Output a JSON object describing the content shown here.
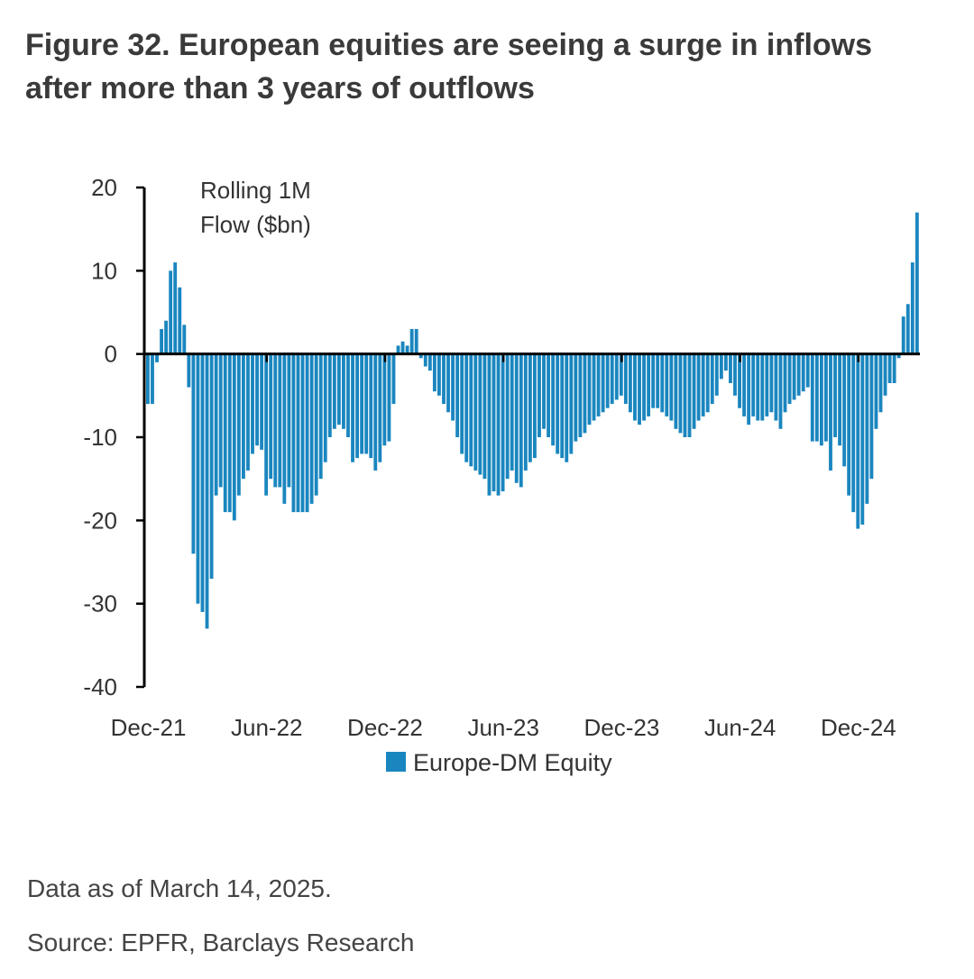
{
  "figure": {
    "title_line1": "Figure 32. European equities are seeing a surge in inflows",
    "title_line2": "after more than 3 years of outflows",
    "note": "Data as of March 14, 2025.",
    "source": "Source: EPFR, Barclays Research"
  },
  "chart_data": {
    "type": "bar",
    "ylabel_line1": "Rolling 1M",
    "ylabel_line2": "Flow ($bn)",
    "ylim": [
      -40,
      20
    ],
    "yticks": [
      20,
      10,
      0,
      -10,
      -20,
      -30,
      -40
    ],
    "xticks": [
      "Dec-21",
      "Jun-22",
      "Dec-22",
      "Jun-23",
      "Dec-23",
      "Jun-24",
      "Dec-24"
    ],
    "x_start": "Dec-21",
    "x_end": "Mar-25",
    "frequency": "weekly",
    "grid": false,
    "legend_position": "bottom-center",
    "bar_color": "#1a86bf",
    "series": [
      {
        "name": "Europe-DM Equity",
        "values": [
          -6,
          -6,
          -1,
          3,
          4,
          10,
          11,
          8,
          3.5,
          -4,
          -24,
          -30,
          -31,
          -33,
          -27,
          -17,
          -16,
          -19,
          -19,
          -20,
          -17,
          -15,
          -14,
          -12,
          -11,
          -11.5,
          -17,
          -15,
          -16,
          -16,
          -18,
          -16,
          -19,
          -19,
          -19,
          -19,
          -18,
          -17,
          -15,
          -13,
          -10,
          -9,
          -8.5,
          -9,
          -10,
          -13,
          -12.5,
          -12,
          -12,
          -12.5,
          -14,
          -13,
          -11,
          -10.5,
          -6,
          1,
          1.5,
          1,
          3,
          3,
          -0.5,
          -1.5,
          -2,
          -4.5,
          -5,
          -6,
          -7,
          -8,
          -10,
          -12,
          -13,
          -13.5,
          -14,
          -14.5,
          -15,
          -17,
          -16.5,
          -17,
          -16.5,
          -15,
          -14,
          -15.5,
          -16,
          -14,
          -13,
          -12.5,
          -10,
          -9,
          -10,
          -11,
          -12,
          -12.5,
          -13,
          -12,
          -10.5,
          -10,
          -9.5,
          -8.5,
          -8,
          -7.5,
          -7,
          -6.5,
          -6,
          -5.5,
          -5,
          -6,
          -7,
          -8,
          -8.5,
          -8,
          -7.5,
          -6.5,
          -6.5,
          -7,
          -7.5,
          -8,
          -9,
          -9.5,
          -10,
          -10,
          -9,
          -8,
          -7.5,
          -7,
          -6,
          -5,
          -3,
          -2,
          -3.5,
          -5,
          -6.5,
          -7.5,
          -8.5,
          -7.5,
          -8,
          -8,
          -7.5,
          -7,
          -8,
          -9,
          -7,
          -6,
          -5.5,
          -5,
          -4.5,
          -4,
          -10.5,
          -10.5,
          -11,
          -10.5,
          -14,
          -10,
          -11,
          -13.5,
          -17,
          -19,
          -21,
          -20.5,
          -18,
          -15,
          -9,
          -7,
          -5,
          -3.5,
          -3.5,
          -0.5,
          4.5,
          6,
          11,
          17
        ]
      }
    ]
  }
}
